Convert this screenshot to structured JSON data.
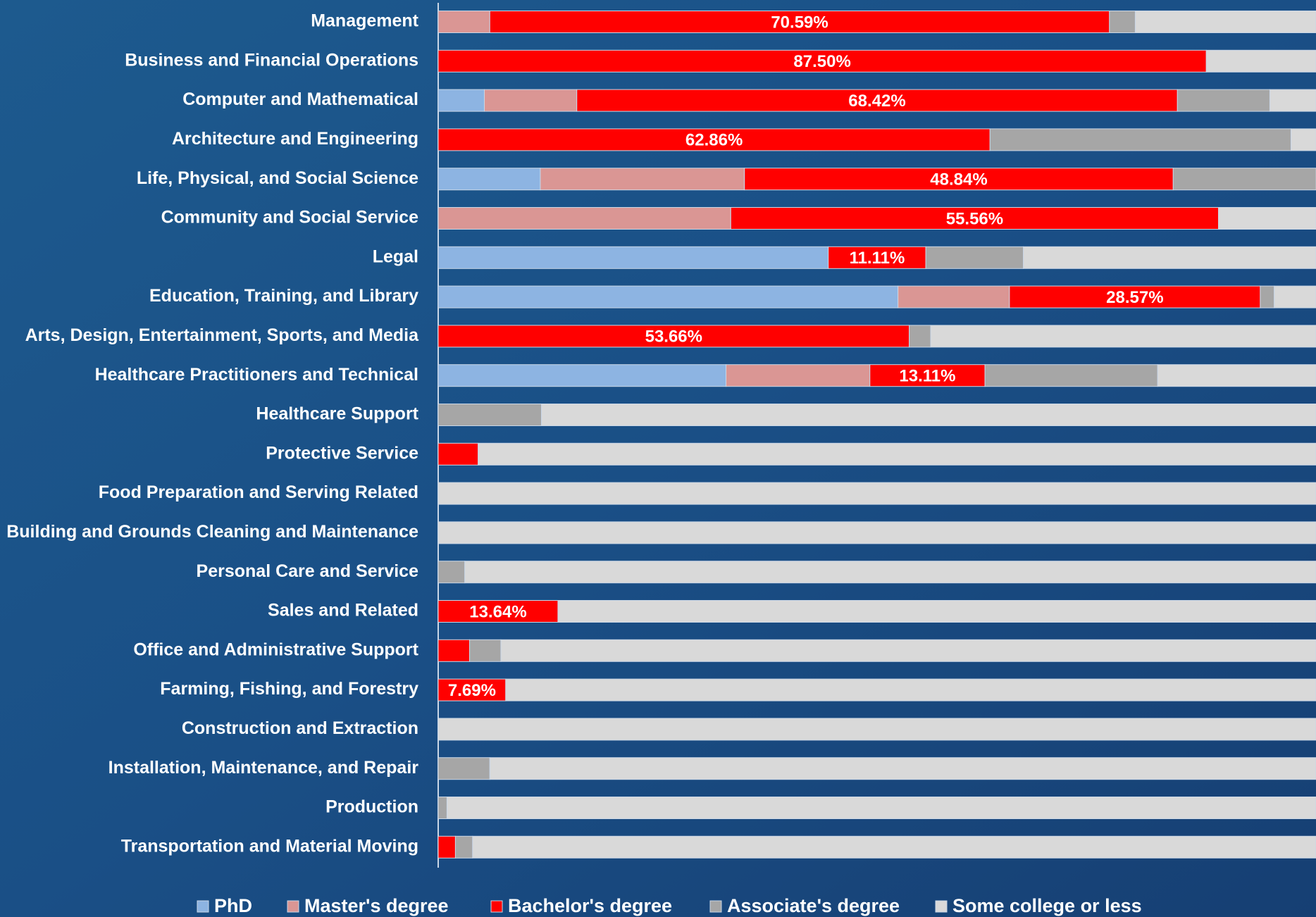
{
  "chart_data": {
    "type": "stacked_bar_horizontal",
    "categories": [
      "Management",
      "Business and Financial Operations",
      "Computer and Mathematical",
      "Architecture and Engineering",
      "Life, Physical, and Social Science",
      "Community and Social Service",
      "Legal",
      "Education, Training, and Library",
      "Arts, Design, Entertainment, Sports, and Media",
      "Healthcare Practitioners and Technical",
      "Healthcare Support",
      "Protective Service",
      "Food Preparation and Serving Related",
      "Building and Grounds Cleaning and Maintenance",
      "Personal Care and Service",
      "Sales and Related",
      "Office and Administrative Support",
      "Farming, Fishing, and Forestry",
      "Construction and Extraction",
      "Installation, Maintenance, and Repair",
      "Production",
      "Transportation and Material Moving"
    ],
    "series": [
      {
        "name": "PhD",
        "color": "#8db4e2",
        "values": [
          0,
          0,
          5.26,
          0,
          11.63,
          0,
          44.44,
          52.38,
          0,
          32.79,
          0,
          0,
          0,
          0,
          0,
          0,
          0,
          0,
          0,
          0,
          0,
          0
        ]
      },
      {
        "name": "Master's degree",
        "color": "#da9694",
        "values": [
          5.88,
          0,
          10.53,
          0,
          23.26,
          33.33,
          0,
          12.7,
          0,
          16.39,
          0,
          0,
          0,
          0,
          0,
          0,
          0,
          0,
          0,
          0,
          0,
          0
        ]
      },
      {
        "name": "Bachelor's degree",
        "color": "#ff0000",
        "values": [
          70.59,
          87.5,
          68.42,
          62.86,
          48.84,
          55.56,
          11.11,
          28.57,
          53.66,
          13.11,
          0,
          4.55,
          0,
          0,
          0,
          13.64,
          3.57,
          7.69,
          0,
          0,
          0,
          1.96
        ],
        "value_labels": [
          "70.59%",
          "87.50%",
          "68.42%",
          "62.86%",
          "48.84%",
          "55.56%",
          "11.11%",
          "28.57%",
          "53.66%",
          "13.11%",
          null,
          null,
          null,
          null,
          null,
          "13.64%",
          null,
          "7.69%",
          null,
          null,
          null,
          null
        ]
      },
      {
        "name": "Associate's degree",
        "color": "#a6a6a6",
        "values": [
          2.94,
          0,
          10.53,
          34.29,
          16.28,
          0,
          11.11,
          1.59,
          2.44,
          19.67,
          11.76,
          0,
          0,
          0,
          3.03,
          0,
          3.57,
          0,
          0,
          5.88,
          1,
          1.96
        ]
      },
      {
        "name": "Some college or less",
        "color": "#d9d9d9",
        "values": [
          20.59,
          12.5,
          5.26,
          2.86,
          0,
          11.11,
          33.33,
          4.76,
          43.9,
          18.03,
          88.24,
          95.45,
          100,
          100,
          96.97,
          86.36,
          92.86,
          92.31,
          100,
          94.12,
          99,
          96.08
        ]
      }
    ],
    "xlim": [
      0,
      100
    ],
    "legend": "bottom"
  }
}
